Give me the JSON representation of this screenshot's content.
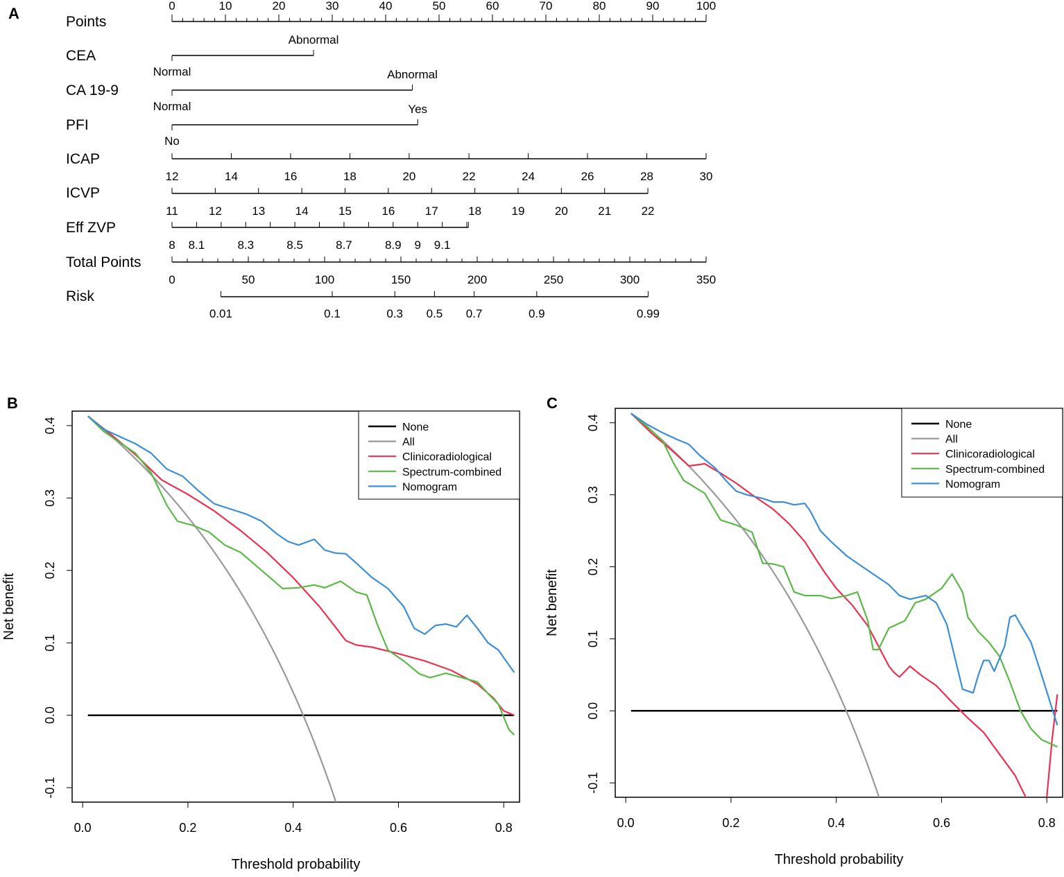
{
  "figure": {
    "panels": [
      "A",
      "B",
      "C"
    ]
  },
  "chart_data": [
    {
      "type": "nomogram",
      "panel": "A",
      "rows": [
        {
          "name": "Points",
          "axis": "points",
          "ticks": [
            {
              "label": "0"
            },
            {
              "label": "10"
            },
            {
              "label": "20"
            },
            {
              "label": "30"
            },
            {
              "label": "40"
            },
            {
              "label": "50"
            },
            {
              "label": "60"
            },
            {
              "label": "70"
            },
            {
              "label": "80"
            },
            {
              "label": "90"
            },
            {
              "label": "100"
            }
          ],
          "min": 0,
          "max": 100
        },
        {
          "name": "CEA",
          "type": "categorical",
          "levels": [
            {
              "label": "Normal",
              "points": 0
            },
            {
              "label": "Abnormal",
              "points": 26.5
            }
          ]
        },
        {
          "name": "CA 19-9",
          "type": "categorical",
          "levels": [
            {
              "label": "Normal",
              "points": 0
            },
            {
              "label": "Abnormal",
              "points": 45
            }
          ]
        },
        {
          "name": "PFI",
          "type": "categorical",
          "levels": [
            {
              "label": "No",
              "points": 0
            },
            {
              "label": "Yes",
              "points": 46
            }
          ]
        },
        {
          "name": "ICAP",
          "type": "continuous",
          "ticks": [
            {
              "label": "12",
              "points": 0
            },
            {
              "label": "14",
              "points": 11.1
            },
            {
              "label": "16",
              "points": 22.2
            },
            {
              "label": "18",
              "points": 33.3
            },
            {
              "label": "20",
              "points": 44.4
            },
            {
              "label": "22",
              "points": 55.6
            },
            {
              "label": "24",
              "points": 66.7
            },
            {
              "label": "26",
              "points": 77.8
            },
            {
              "label": "28",
              "points": 88.9
            },
            {
              "label": "30",
              "points": 100
            }
          ]
        },
        {
          "name": "ICVP",
          "type": "continuous",
          "ticks": [
            {
              "label": "11",
              "points": 0
            },
            {
              "label": "12",
              "points": 8.1
            },
            {
              "label": "13",
              "points": 16.2
            },
            {
              "label": "14",
              "points": 24.3
            },
            {
              "label": "15",
              "points": 32.4
            },
            {
              "label": "16",
              "points": 40.5
            },
            {
              "label": "17",
              "points": 48.6
            },
            {
              "label": "18",
              "points": 56.7
            },
            {
              "label": "19",
              "points": 64.8
            },
            {
              "label": "20",
              "points": 72.9
            },
            {
              "label": "21",
              "points": 81
            },
            {
              "label": "22",
              "points": 89.1
            }
          ]
        },
        {
          "name": "Eff ZVP",
          "type": "continuous",
          "ticks": [
            {
              "label": "8",
              "points": 0
            },
            {
              "label": "8.1",
              "points": 4.6
            },
            {
              "label": "8.3",
              "points": 13.8
            },
            {
              "label": "8.5",
              "points": 23
            },
            {
              "label": "8.7",
              "points": 32.2
            },
            {
              "label": "8.9",
              "points": 41.4
            },
            {
              "label": "9",
              "points": 46
            },
            {
              "label": "9.1",
              "points": 50.6
            }
          ],
          "minor_points": [
            9.2,
            18.4,
            27.6,
            36.8,
            55.2
          ],
          "end_points": 55.5
        },
        {
          "name": "Total Points",
          "axis": "total",
          "ticks": [
            {
              "label": "0"
            },
            {
              "label": "50"
            },
            {
              "label": "100"
            },
            {
              "label": "150"
            },
            {
              "label": "200"
            },
            {
              "label": "250"
            },
            {
              "label": "300"
            },
            {
              "label": "350"
            }
          ],
          "min": 0,
          "max": 350
        },
        {
          "name": "Risk",
          "type": "risk",
          "ticks": [
            {
              "label": "0.01",
              "total": 32
            },
            {
              "label": "0.1",
              "total": 105
            },
            {
              "label": "0.3",
              "total": 146
            },
            {
              "label": "0.5",
              "total": 172
            },
            {
              "label": "0.7",
              "total": 198
            },
            {
              "label": "0.9",
              "total": 239
            },
            {
              "label": "0.99",
              "total": 312
            }
          ]
        }
      ]
    },
    {
      "type": "line",
      "panel": "B",
      "title": "",
      "xlabel": "Threshold probability",
      "ylabel": "Net benefit",
      "xlim": [
        -0.02,
        0.83
      ],
      "ylim": [
        -0.12,
        0.42
      ],
      "xticks": [
        "0.0",
        "0.2",
        "0.4",
        "0.6",
        "0.8"
      ],
      "yticks": [
        "-0.1",
        "0.0",
        "0.1",
        "0.2",
        "0.3",
        "0.4"
      ],
      "legend": [
        "None",
        "All",
        "Clinicoradiological",
        "Spectrum-combined",
        "Nomogram"
      ],
      "legend_position": "top-right",
      "series": [
        {
          "name": "None",
          "color": "#000000",
          "x": [
            0.01,
            0.82
          ],
          "y": [
            0,
            0
          ]
        },
        {
          "name": "All",
          "color": "#999999",
          "prevalence": 0.419,
          "x_range": [
            0.01,
            0.5
          ]
        },
        {
          "name": "Clinicoradiological",
          "color": "#e8324f",
          "x": [
            0.01,
            0.05,
            0.1,
            0.15,
            0.2,
            0.25,
            0.3,
            0.35,
            0.4,
            0.45,
            0.48,
            0.5,
            0.52,
            0.55,
            0.6,
            0.65,
            0.7,
            0.75,
            0.78,
            0.8,
            0.82
          ],
          "y": [
            0.413,
            0.39,
            0.36,
            0.325,
            0.305,
            0.282,
            0.255,
            0.225,
            0.19,
            0.15,
            0.122,
            0.103,
            0.097,
            0.094,
            0.085,
            0.075,
            0.062,
            0.043,
            0.024,
            0.006,
            0.0
          ]
        },
        {
          "name": "Spectrum-combined",
          "color": "#5ab947",
          "x": [
            0.01,
            0.04,
            0.07,
            0.1,
            0.13,
            0.16,
            0.18,
            0.21,
            0.24,
            0.27,
            0.3,
            0.34,
            0.38,
            0.41,
            0.44,
            0.46,
            0.49,
            0.52,
            0.54,
            0.56,
            0.58,
            0.61,
            0.64,
            0.66,
            0.69,
            0.71,
            0.73,
            0.75,
            0.77,
            0.79,
            0.81,
            0.82
          ],
          "y": [
            0.413,
            0.392,
            0.377,
            0.362,
            0.335,
            0.29,
            0.268,
            0.262,
            0.253,
            0.235,
            0.225,
            0.2,
            0.175,
            0.176,
            0.18,
            0.176,
            0.185,
            0.17,
            0.166,
            0.125,
            0.09,
            0.075,
            0.057,
            0.052,
            0.058,
            0.054,
            0.05,
            0.046,
            0.03,
            0.015,
            -0.02,
            -0.027
          ]
        },
        {
          "name": "Nomogram",
          "color": "#3b8ed6",
          "x": [
            0.01,
            0.04,
            0.07,
            0.1,
            0.13,
            0.16,
            0.19,
            0.22,
            0.25,
            0.28,
            0.31,
            0.34,
            0.37,
            0.39,
            0.41,
            0.44,
            0.46,
            0.48,
            0.5,
            0.52,
            0.55,
            0.58,
            0.61,
            0.63,
            0.65,
            0.67,
            0.69,
            0.71,
            0.73,
            0.75,
            0.77,
            0.79,
            0.82
          ],
          "y": [
            0.413,
            0.395,
            0.385,
            0.375,
            0.362,
            0.34,
            0.33,
            0.31,
            0.292,
            0.285,
            0.278,
            0.268,
            0.25,
            0.24,
            0.235,
            0.243,
            0.228,
            0.224,
            0.223,
            0.21,
            0.19,
            0.175,
            0.15,
            0.12,
            0.112,
            0.124,
            0.126,
            0.122,
            0.138,
            0.12,
            0.1,
            0.09,
            0.059
          ]
        }
      ]
    },
    {
      "type": "line",
      "panel": "C",
      "title": "",
      "xlabel": "Threshold probability",
      "ylabel": "Net benefit",
      "xlim": [
        -0.02,
        0.83
      ],
      "ylim": [
        -0.12,
        0.42
      ],
      "xticks": [
        "0.0",
        "0.2",
        "0.4",
        "0.6",
        "0.8"
      ],
      "yticks": [
        "-0.1",
        "0.0",
        "0.1",
        "0.2",
        "0.3",
        "0.4"
      ],
      "legend": [
        "None",
        "All",
        "Clinicoradiological",
        "Spectrum-combined",
        "Nomogram"
      ],
      "legend_position": "top-right",
      "series": [
        {
          "name": "None",
          "color": "#000000",
          "x": [
            0.01,
            0.82
          ],
          "y": [
            0,
            0
          ]
        },
        {
          "name": "All",
          "color": "#999999",
          "prevalence": 0.419,
          "x_range": [
            0.01,
            0.5
          ]
        },
        {
          "name": "Clinicoradiological",
          "color": "#e8324f",
          "x": [
            0.01,
            0.05,
            0.09,
            0.12,
            0.15,
            0.18,
            0.21,
            0.24,
            0.28,
            0.31,
            0.34,
            0.36,
            0.38,
            0.4,
            0.43,
            0.46,
            0.48,
            0.5,
            0.51,
            0.52,
            0.54,
            0.56,
            0.59,
            0.62,
            0.65,
            0.68,
            0.71,
            0.74,
            0.76,
            0.78,
            0.79,
            0.8,
            0.81,
            0.82
          ],
          "y": [
            0.413,
            0.385,
            0.36,
            0.34,
            0.343,
            0.33,
            0.316,
            0.3,
            0.28,
            0.26,
            0.235,
            0.212,
            0.19,
            0.17,
            0.147,
            0.118,
            0.09,
            0.062,
            0.053,
            0.047,
            0.062,
            0.05,
            0.035,
            0.012,
            -0.01,
            -0.03,
            -0.06,
            -0.09,
            -0.12,
            -0.15,
            -0.165,
            -0.12,
            -0.04,
            0.023
          ]
        },
        {
          "name": "Spectrum-combined",
          "color": "#5ab947",
          "x": [
            0.01,
            0.04,
            0.07,
            0.09,
            0.11,
            0.15,
            0.18,
            0.21,
            0.24,
            0.26,
            0.28,
            0.3,
            0.32,
            0.34,
            0.37,
            0.39,
            0.42,
            0.44,
            0.46,
            0.47,
            0.48,
            0.5,
            0.53,
            0.55,
            0.57,
            0.6,
            0.62,
            0.64,
            0.65,
            0.67,
            0.69,
            0.71,
            0.73,
            0.75,
            0.77,
            0.79,
            0.82
          ],
          "y": [
            0.413,
            0.395,
            0.375,
            0.345,
            0.32,
            0.302,
            0.265,
            0.258,
            0.248,
            0.205,
            0.204,
            0.2,
            0.165,
            0.16,
            0.16,
            0.156,
            0.16,
            0.165,
            0.125,
            0.085,
            0.085,
            0.115,
            0.125,
            0.15,
            0.155,
            0.17,
            0.19,
            0.165,
            0.13,
            0.11,
            0.095,
            0.076,
            0.04,
            0.0,
            -0.025,
            -0.04,
            -0.05
          ]
        },
        {
          "name": "Nomogram",
          "color": "#3b8ed6",
          "x": [
            0.01,
            0.04,
            0.07,
            0.1,
            0.12,
            0.14,
            0.17,
            0.19,
            0.21,
            0.23,
            0.26,
            0.28,
            0.3,
            0.32,
            0.34,
            0.35,
            0.37,
            0.39,
            0.42,
            0.45,
            0.48,
            0.5,
            0.52,
            0.54,
            0.57,
            0.59,
            0.61,
            0.62,
            0.63,
            0.64,
            0.66,
            0.67,
            0.68,
            0.69,
            0.7,
            0.72,
            0.73,
            0.74,
            0.75,
            0.77,
            0.79,
            0.82
          ],
          "y": [
            0.413,
            0.398,
            0.386,
            0.376,
            0.37,
            0.355,
            0.337,
            0.32,
            0.305,
            0.3,
            0.295,
            0.29,
            0.29,
            0.286,
            0.288,
            0.278,
            0.25,
            0.235,
            0.215,
            0.2,
            0.185,
            0.175,
            0.16,
            0.155,
            0.16,
            0.15,
            0.12,
            0.09,
            0.06,
            0.03,
            0.025,
            0.05,
            0.07,
            0.07,
            0.055,
            0.09,
            0.13,
            0.133,
            0.12,
            0.095,
            0.05,
            -0.02
          ]
        }
      ]
    }
  ]
}
